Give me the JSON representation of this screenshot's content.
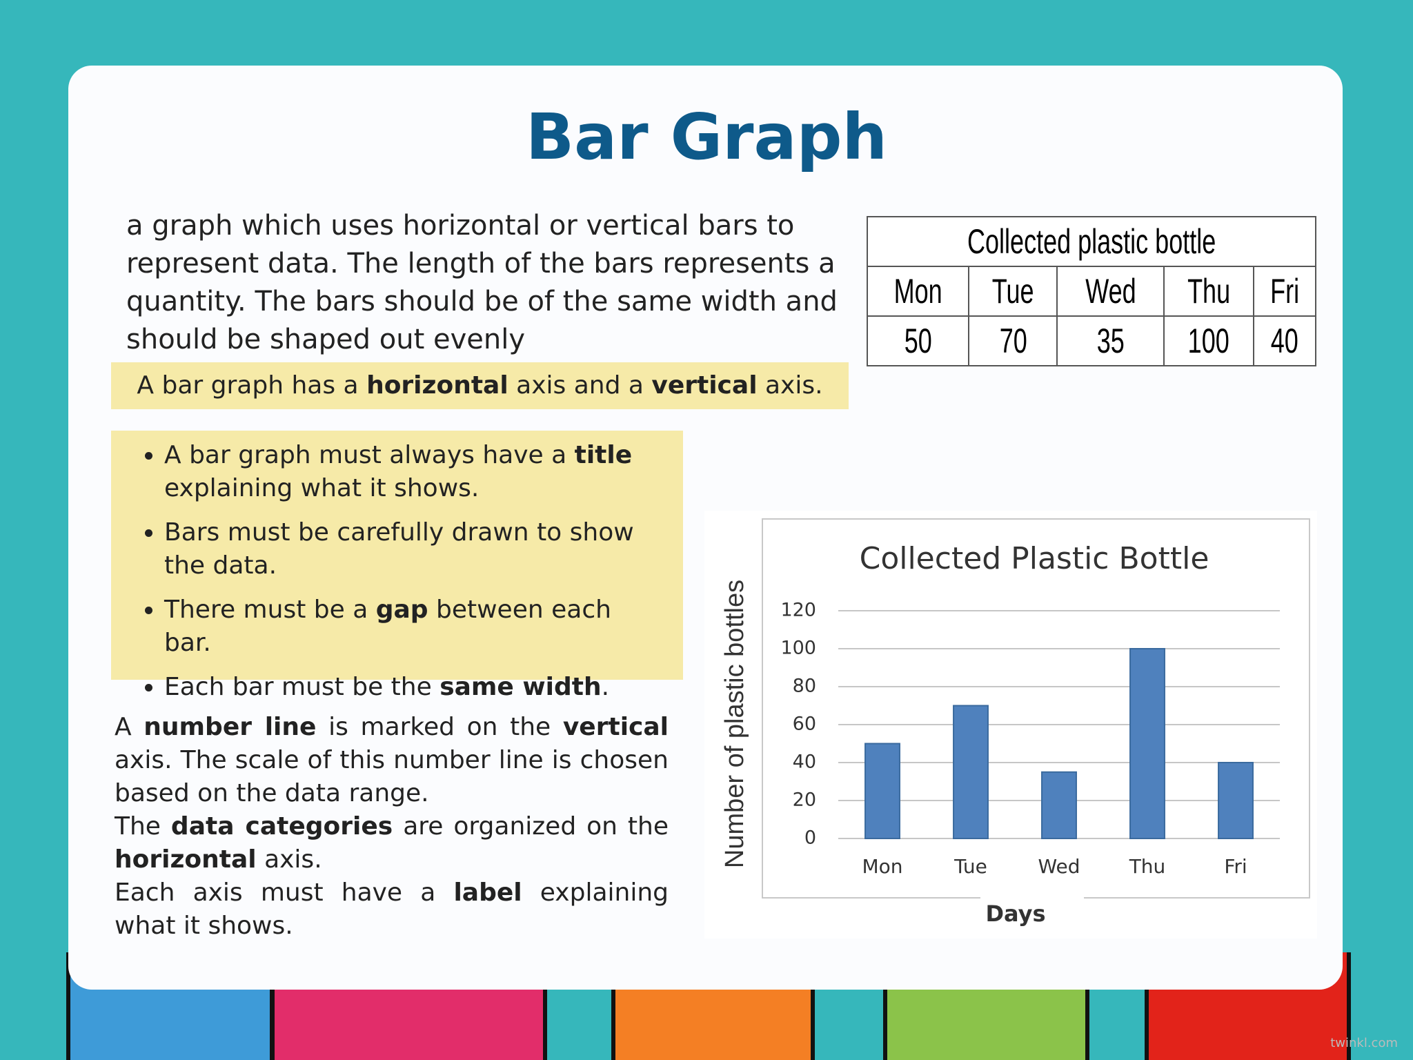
{
  "title": "Bar Graph",
  "definition": "a graph which uses horizontal or vertical bars to represent data. The length of the bars represents a quantity. The bars should be of the same width and should be shaped out evenly",
  "highlight": [
    {
      "text": "A bar graph has a "
    },
    {
      "text": "horizontal",
      "bold": true
    },
    {
      "text": " axis and a "
    },
    {
      "text": "vertical",
      "bold": true
    },
    {
      "text": " axis."
    }
  ],
  "bullets": [
    [
      {
        "text": "A bar graph must always have a "
      },
      {
        "text": "title",
        "bold": true
      },
      {
        "text": " explaining what it shows."
      }
    ],
    [
      {
        "text": "Bars must be carefully drawn to show the data."
      }
    ],
    [
      {
        "text": "There must be a "
      },
      {
        "text": "gap",
        "bold": true
      },
      {
        "text": " between each bar."
      }
    ],
    [
      {
        "text": "Each bar must be the "
      },
      {
        "text": "same width",
        "bold": true
      },
      {
        "text": "."
      }
    ]
  ],
  "notes": [
    [
      {
        "text": "A "
      },
      {
        "text": "number line",
        "bold": true
      },
      {
        "text": " is marked on the "
      },
      {
        "text": "vertical",
        "bold": true
      },
      {
        "text": " axis. The scale of this number line is chosen based on the data range."
      }
    ],
    [
      {
        "text": "The "
      },
      {
        "text": "data categories",
        "bold": true
      },
      {
        "text": " are organized on the "
      },
      {
        "text": "horizontal",
        "bold": true
      },
      {
        "text": " axis."
      }
    ],
    [
      {
        "text": "Each axis must have a "
      },
      {
        "text": "label",
        "bold": true
      },
      {
        "text": " explaining what it shows."
      }
    ]
  ],
  "table": {
    "title": "Collected plastic bottle",
    "header": [
      "Mon",
      "Tue",
      "Wed",
      "Thu",
      "Fri"
    ],
    "rows": [
      [
        50,
        70,
        35,
        100,
        40
      ]
    ]
  },
  "chart_data": {
    "type": "bar",
    "title": "Collected Plastic Bottle",
    "x_label": "Days",
    "y_label": "Number of plastic bottles",
    "categories": [
      "Mon",
      "Tue",
      "Wed",
      "Thu",
      "Fri"
    ],
    "values": [
      50,
      70,
      35,
      100,
      40
    ],
    "color": "#4f81bd",
    "ylim": [
      0,
      120
    ],
    "yticks": [
      0,
      20,
      40,
      60,
      80,
      100,
      120
    ],
    "grid": true
  },
  "watermark": "twinkl.com"
}
